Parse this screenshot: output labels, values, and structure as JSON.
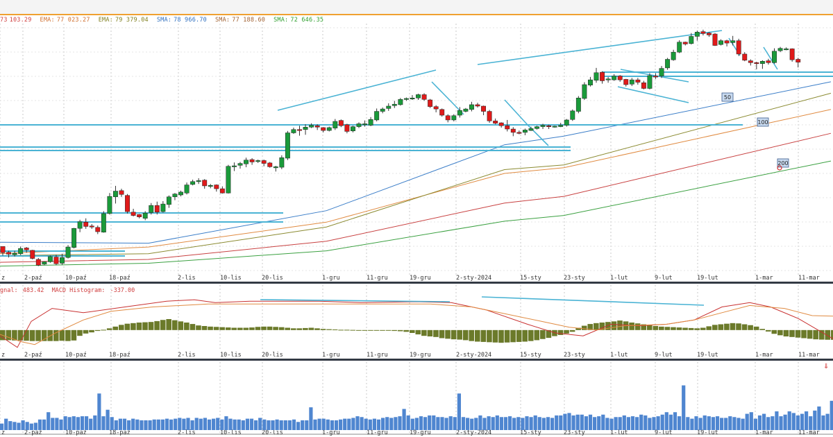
{
  "indicators": [
    {
      "name": "73",
      "value": "103.29",
      "color": "#d04040"
    },
    {
      "name": "EMA:",
      "value": "77 023.27",
      "color": "#d07030"
    },
    {
      "name": "EMA:",
      "value": "79 379.04",
      "color": "#808020"
    },
    {
      "name": "SMA:",
      "value": "78 966.70",
      "color": "#3070c0"
    },
    {
      "name": "SMA:",
      "value": "77 188.60",
      "color": "#a06030"
    },
    {
      "name": "SMA:",
      "value": "72 646.35",
      "color": "#30a030"
    }
  ],
  "macd_header": {
    "signal_label": "gnal:",
    "signal_value": "483.42",
    "hist_label": "MACD Histogram:",
    "hist_value": "-337.00",
    "color": "#d04040"
  },
  "sma_markers": [
    "50",
    "100",
    "200"
  ],
  "colors": {
    "up": "#1a9a3a",
    "down": "#e01a1a",
    "trend": "#4ab3d4",
    "volume": "#4f86d0",
    "macd_hist": "#6b7a2a",
    "accent": "#f0a030"
  },
  "chart_data": {
    "type": "candlestick",
    "x_tick_labels": [
      "z",
      "2-paź",
      "10-paź",
      "18-paź",
      "2-lis",
      "10-lis",
      "20-lis",
      "1-gru",
      "11-gru",
      "19-gru",
      "2-sty-2024",
      "15-sty",
      "23-sty",
      "1-lut",
      "9-lut",
      "19-lut",
      "1-mar",
      "11-mar"
    ],
    "grid": true,
    "candles_ohlc": [
      [
        64950,
        64300,
        64000,
        64600
      ],
      [
        64350,
        64150,
        63800,
        64500
      ],
      [
        64100,
        64250,
        63900,
        64500
      ],
      [
        64200,
        64750,
        64050,
        64950
      ],
      [
        64800,
        64600,
        64300,
        64900
      ],
      [
        64550,
        63700,
        63600,
        64600
      ],
      [
        63600,
        63000,
        62900,
        63750
      ],
      [
        63100,
        63350,
        63000,
        63400
      ],
      [
        63350,
        63900,
        63250,
        64000
      ],
      [
        63850,
        63150,
        63000,
        64100
      ],
      [
        63200,
        63800,
        63050,
        64200
      ],
      [
        63800,
        64900,
        63700,
        65100
      ],
      [
        64850,
        66850,
        64750,
        66900
      ],
      [
        66850,
        67550,
        66450,
        67750
      ],
      [
        67500,
        67050,
        66800,
        67900
      ],
      [
        67100,
        67050,
        66800,
        67300
      ],
      [
        66950,
        66500,
        66250,
        67150
      ],
      [
        66450,
        68400,
        66400,
        68650
      ],
      [
        68400,
        70200,
        68300,
        70550
      ],
      [
        70150,
        70750,
        69450,
        71300
      ],
      [
        70800,
        70400,
        70150,
        71000
      ],
      [
        70300,
        68600,
        68400,
        70450
      ],
      [
        68550,
        68200,
        68100,
        68900
      ],
      [
        68300,
        68050,
        67900,
        68350
      ],
      [
        67900,
        68450,
        67700,
        68650
      ],
      [
        68500,
        69250,
        68300,
        69500
      ],
      [
        69250,
        68550,
        68300,
        69650
      ],
      [
        68600,
        69400,
        68500,
        69700
      ],
      [
        69350,
        70150,
        69000,
        70300
      ],
      [
        70150,
        70450,
        69800,
        70550
      ],
      [
        70350,
        70650,
        70200,
        70800
      ],
      [
        70550,
        71400,
        70400,
        71650
      ],
      [
        71450,
        71750,
        71350,
        71950
      ],
      [
        71800,
        71850,
        71500,
        72100
      ],
      [
        71900,
        71300,
        71000,
        72000
      ],
      [
        71300,
        71350,
        71050,
        71500
      ],
      [
        71400,
        71000,
        70700,
        71450
      ],
      [
        71000,
        70550,
        70500,
        71250
      ],
      [
        70550,
        73350,
        70500,
        73500
      ],
      [
        73300,
        73400,
        72850,
        73750
      ],
      [
        73450,
        73650,
        73100,
        73800
      ],
      [
        73600,
        74000,
        73250,
        74250
      ],
      [
        74050,
        73800,
        73500,
        74200
      ],
      [
        73900,
        73950,
        73700,
        74050
      ],
      [
        73950,
        73650,
        73350,
        74050
      ],
      [
        73700,
        73300,
        73200,
        73800
      ],
      [
        73250,
        73300,
        72800,
        73400
      ],
      [
        73250,
        74250,
        73050,
        74500
      ],
      [
        74200,
        76850,
        74000,
        77050
      ],
      [
        76850,
        77200,
        76750,
        77400
      ],
      [
        77200,
        77150,
        76550,
        77600
      ],
      [
        77200,
        77450,
        76650,
        77750
      ],
      [
        77450,
        77650,
        77350,
        77850
      ],
      [
        77600,
        77450,
        77150,
        77750
      ],
      [
        77400,
        77100,
        76900,
        77450
      ],
      [
        77100,
        77400,
        77000,
        77500
      ],
      [
        77350,
        78050,
        77150,
        78300
      ],
      [
        78150,
        77600,
        77450,
        78250
      ],
      [
        77700,
        77000,
        76800,
        77800
      ],
      [
        77050,
        77500,
        76900,
        77600
      ],
      [
        77500,
        77800,
        77350,
        77950
      ],
      [
        77800,
        77800,
        77500,
        78150
      ],
      [
        77650,
        78250,
        77550,
        78500
      ],
      [
        78200,
        79100,
        78050,
        79400
      ],
      [
        79100,
        79350,
        78900,
        79500
      ],
      [
        79400,
        79650,
        79150,
        79950
      ],
      [
        79700,
        79850,
        79450,
        80200
      ],
      [
        79800,
        80350,
        79700,
        80500
      ],
      [
        80350,
        80450,
        80200,
        80550
      ],
      [
        80400,
        80500,
        80300,
        80800
      ],
      [
        80500,
        80850,
        80300,
        80950
      ],
      [
        80850,
        80350,
        80200,
        81000
      ],
      [
        80300,
        79600,
        79450,
        80400
      ],
      [
        79600,
        79350,
        79000,
        79750
      ],
      [
        79300,
        78700,
        78550,
        79400
      ],
      [
        78650,
        78200,
        77950,
        78800
      ],
      [
        78200,
        78650,
        78050,
        78800
      ],
      [
        78700,
        79200,
        78450,
        79550
      ],
      [
        79100,
        79350,
        79000,
        79450
      ],
      [
        79300,
        79800,
        79100,
        80100
      ],
      [
        79800,
        79650,
        79500,
        80000
      ],
      [
        79650,
        79100,
        78700,
        79700
      ],
      [
        79100,
        78100,
        77900,
        79250
      ],
      [
        78100,
        77850,
        77750,
        78350
      ],
      [
        77900,
        77600,
        77400,
        77950
      ],
      [
        77600,
        77250,
        77000,
        78200
      ],
      [
        77250,
        76900,
        76500,
        77450
      ],
      [
        76900,
        76850,
        76700,
        77100
      ],
      [
        76900,
        77150,
        76600,
        77300
      ],
      [
        77100,
        77300,
        77050,
        77500
      ],
      [
        77300,
        77500,
        77200,
        77600
      ],
      [
        77500,
        77650,
        77250,
        77800
      ],
      [
        77600,
        77500,
        77250,
        77700
      ],
      [
        77500,
        77550,
        77400,
        77600
      ],
      [
        77500,
        77650,
        77450,
        77900
      ],
      [
        77650,
        78200,
        77500,
        78300
      ],
      [
        78250,
        79150,
        78100,
        79300
      ],
      [
        79100,
        80500,
        78900,
        80700
      ],
      [
        80450,
        81900,
        80300,
        82150
      ],
      [
        81850,
        82400,
        81700,
        82700
      ],
      [
        82350,
        83150,
        82100,
        83650
      ],
      [
        83200,
        82300,
        82000,
        83300
      ],
      [
        82400,
        82500,
        82100,
        82700
      ],
      [
        82400,
        82800,
        82300,
        83000
      ],
      [
        82800,
        82400,
        82200,
        82900
      ],
      [
        82450,
        81900,
        81700,
        82500
      ],
      [
        81950,
        82400,
        81750,
        82600
      ],
      [
        82400,
        82150,
        81900,
        82600
      ],
      [
        82100,
        81500,
        81400,
        82300
      ],
      [
        81500,
        82850,
        81400,
        83100
      ],
      [
        82800,
        82700,
        82500,
        83100
      ],
      [
        82800,
        83600,
        82600,
        83850
      ],
      [
        83650,
        84550,
        83450,
        84700
      ],
      [
        84500,
        85300,
        84400,
        85550
      ],
      [
        85300,
        86350,
        85200,
        86550
      ],
      [
        86350,
        86150,
        86000,
        86400
      ],
      [
        86200,
        86950,
        86100,
        87300
      ],
      [
        86950,
        87400,
        86500,
        87550
      ],
      [
        87450,
        87250,
        87050,
        87650
      ],
      [
        87300,
        87100,
        86900,
        87400
      ],
      [
        87200,
        86000,
        85950,
        87300
      ],
      [
        86100,
        86500,
        86000,
        86650
      ],
      [
        86500,
        86250,
        85900,
        86600
      ],
      [
        86300,
        86500,
        86000,
        87000
      ],
      [
        86500,
        85100,
        84900,
        86700
      ],
      [
        85100,
        84450,
        84350,
        85300
      ],
      [
        84400,
        84200,
        83900,
        84550
      ],
      [
        84200,
        84100,
        83500,
        84300
      ],
      [
        84100,
        84350,
        83550,
        84450
      ],
      [
        84400,
        84200,
        84000,
        84600
      ],
      [
        84200,
        85400,
        84100,
        85700
      ],
      [
        85450,
        85700,
        85300,
        85850
      ],
      [
        85600,
        85650,
        85500,
        85800
      ],
      [
        85650,
        84500,
        84300,
        85700
      ],
      [
        84550,
        84250,
        83700,
        84700
      ]
    ],
    "sma_lines": [
      {
        "period": 50,
        "points": [
          [
            0,
            65400
          ],
          [
            25,
            65300
          ],
          [
            55,
            68700
          ],
          [
            85,
            75600
          ],
          [
            95,
            76500
          ],
          [
            140,
            82200
          ]
        ]
      },
      {
        "period": 100,
        "points": [
          [
            0,
            64200
          ],
          [
            25,
            64900
          ],
          [
            55,
            67500
          ],
          [
            85,
            72600
          ],
          [
            95,
            73200
          ],
          [
            140,
            79300
          ]
        ]
      },
      {
        "period": 200,
        "points": [
          [
            0,
            62900
          ],
          [
            25,
            63200
          ],
          [
            55,
            64500
          ],
          [
            85,
            67600
          ],
          [
            95,
            68200
          ],
          [
            140,
            73900
          ]
        ]
      }
    ],
    "macd": {
      "histogram": [
        -350,
        -350,
        -360,
        -360,
        -370,
        -380,
        -380,
        -380,
        -380,
        -380,
        -370,
        -380,
        -360,
        -200,
        -120,
        -80,
        -30,
        10,
        60,
        120,
        180,
        220,
        240,
        260,
        270,
        280,
        310,
        350,
        380,
        340,
        300,
        260,
        210,
        160,
        140,
        120,
        110,
        100,
        90,
        80,
        80,
        80,
        90,
        110,
        120,
        120,
        110,
        100,
        80,
        60,
        60,
        70,
        80,
        60,
        40,
        30,
        20,
        10,
        10,
        5,
        0,
        0,
        -10,
        -20,
        -20,
        -10,
        -30,
        -40,
        -60,
        -100,
        -150,
        -200,
        -220,
        -240,
        -280,
        -300,
        -320,
        -330,
        -350,
        -380,
        -400,
        -410,
        -420,
        -430,
        -440,
        -430,
        -420,
        -410,
        -400,
        -380,
        -350,
        -310,
        -270,
        -210,
        -170,
        -120,
        -60,
        80,
        150,
        210,
        240,
        260,
        280,
        300,
        330,
        300,
        260,
        230,
        200,
        180,
        140,
        120,
        110,
        100,
        90,
        80,
        70,
        60,
        80,
        130,
        180,
        200,
        220,
        240,
        230,
        200,
        170,
        120,
        40,
        -50,
        -130,
        -180,
        -220,
        -240,
        -260,
        -280,
        -300,
        -320,
        -330,
        -335,
        -337,
        -337
      ],
      "macd_line": [
        [
          0,
          -200
        ],
        [
          25,
          -600
        ],
        [
          45,
          300
        ],
        [
          75,
          750
        ],
        [
          120,
          600
        ],
        [
          180,
          800
        ],
        [
          240,
          1000
        ],
        [
          280,
          1050
        ],
        [
          310,
          950
        ],
        [
          360,
          1000
        ],
        [
          420,
          1000
        ],
        [
          460,
          1000
        ],
        [
          520,
          950
        ],
        [
          600,
          980
        ],
        [
          650,
          950
        ],
        [
          700,
          700
        ],
        [
          760,
          200
        ],
        [
          800,
          -100
        ],
        [
          840,
          -200
        ],
        [
          880,
          200
        ],
        [
          920,
          150
        ],
        [
          960,
          200
        ],
        [
          1000,
          350
        ],
        [
          1040,
          800
        ],
        [
          1080,
          950
        ],
        [
          1110,
          800
        ],
        [
          1150,
          400
        ],
        [
          1200,
          -300
        ]
      ],
      "signal_line": [
        [
          0,
          -150
        ],
        [
          30,
          -400
        ],
        [
          50,
          -500
        ],
        [
          80,
          -100
        ],
        [
          120,
          350
        ],
        [
          160,
          650
        ],
        [
          220,
          800
        ],
        [
          300,
          900
        ],
        [
          380,
          900
        ],
        [
          460,
          900
        ],
        [
          540,
          900
        ],
        [
          620,
          900
        ],
        [
          680,
          800
        ],
        [
          720,
          600
        ],
        [
          780,
          300
        ],
        [
          820,
          100
        ],
        [
          860,
          0
        ],
        [
          900,
          150
        ],
        [
          960,
          200
        ],
        [
          1000,
          350
        ],
        [
          1040,
          600
        ],
        [
          1080,
          850
        ],
        [
          1130,
          750
        ],
        [
          1170,
          500
        ],
        [
          1200,
          483
        ]
      ]
    },
    "volume": [
      8,
      14,
      11,
      10,
      9,
      12,
      10,
      8,
      9,
      13,
      13,
      22,
      15,
      15,
      13,
      17,
      16,
      17,
      16,
      17,
      17,
      14,
      18,
      45,
      17,
      25,
      16,
      12,
      14,
      14,
      12,
      14,
      13,
      12,
      12,
      12,
      13,
      13,
      13,
      14,
      13,
      14,
      15,
      14,
      15,
      12,
      15,
      14,
      15,
      13,
      14,
      15,
      13,
      17,
      14,
      13,
      13,
      12,
      14,
      14,
      12,
      15,
      13,
      12,
      12,
      13,
      12,
      12,
      12,
      13,
      10,
      12,
      12,
      28,
      13,
      14,
      14,
      13,
      12,
      12,
      13,
      14,
      14,
      15,
      17,
      16,
      14,
      13,
      14,
      13,
      15,
      16,
      15,
      16,
      17,
      26,
      18,
      14,
      15,
      17,
      16,
      18,
      18,
      16,
      16,
      15,
      17,
      16,
      45,
      16,
      15,
      14,
      15,
      18,
      15,
      17,
      16,
      18,
      16,
      16,
      17,
      15,
      16,
      15,
      17,
      16,
      18,
      16,
      15,
      16,
      15,
      18,
      18,
      20,
      21,
      18,
      19,
      19,
      17,
      19,
      16,
      17,
      19,
      15,
      14,
      16,
      16,
      18,
      16,
      17,
      16,
      19,
      18,
      15,
      16,
      17,
      19,
      22,
      19,
      22,
      17,
      55,
      16,
      14,
      17,
      15,
      18,
      17,
      16,
      17,
      15,
      15,
      17,
      16,
      15,
      14,
      20,
      22,
      14,
      18,
      20,
      16,
      17,
      23,
      17,
      19,
      23,
      21,
      18,
      20,
      23,
      17,
      24,
      29,
      18,
      20,
      36,
      67
    ]
  }
}
